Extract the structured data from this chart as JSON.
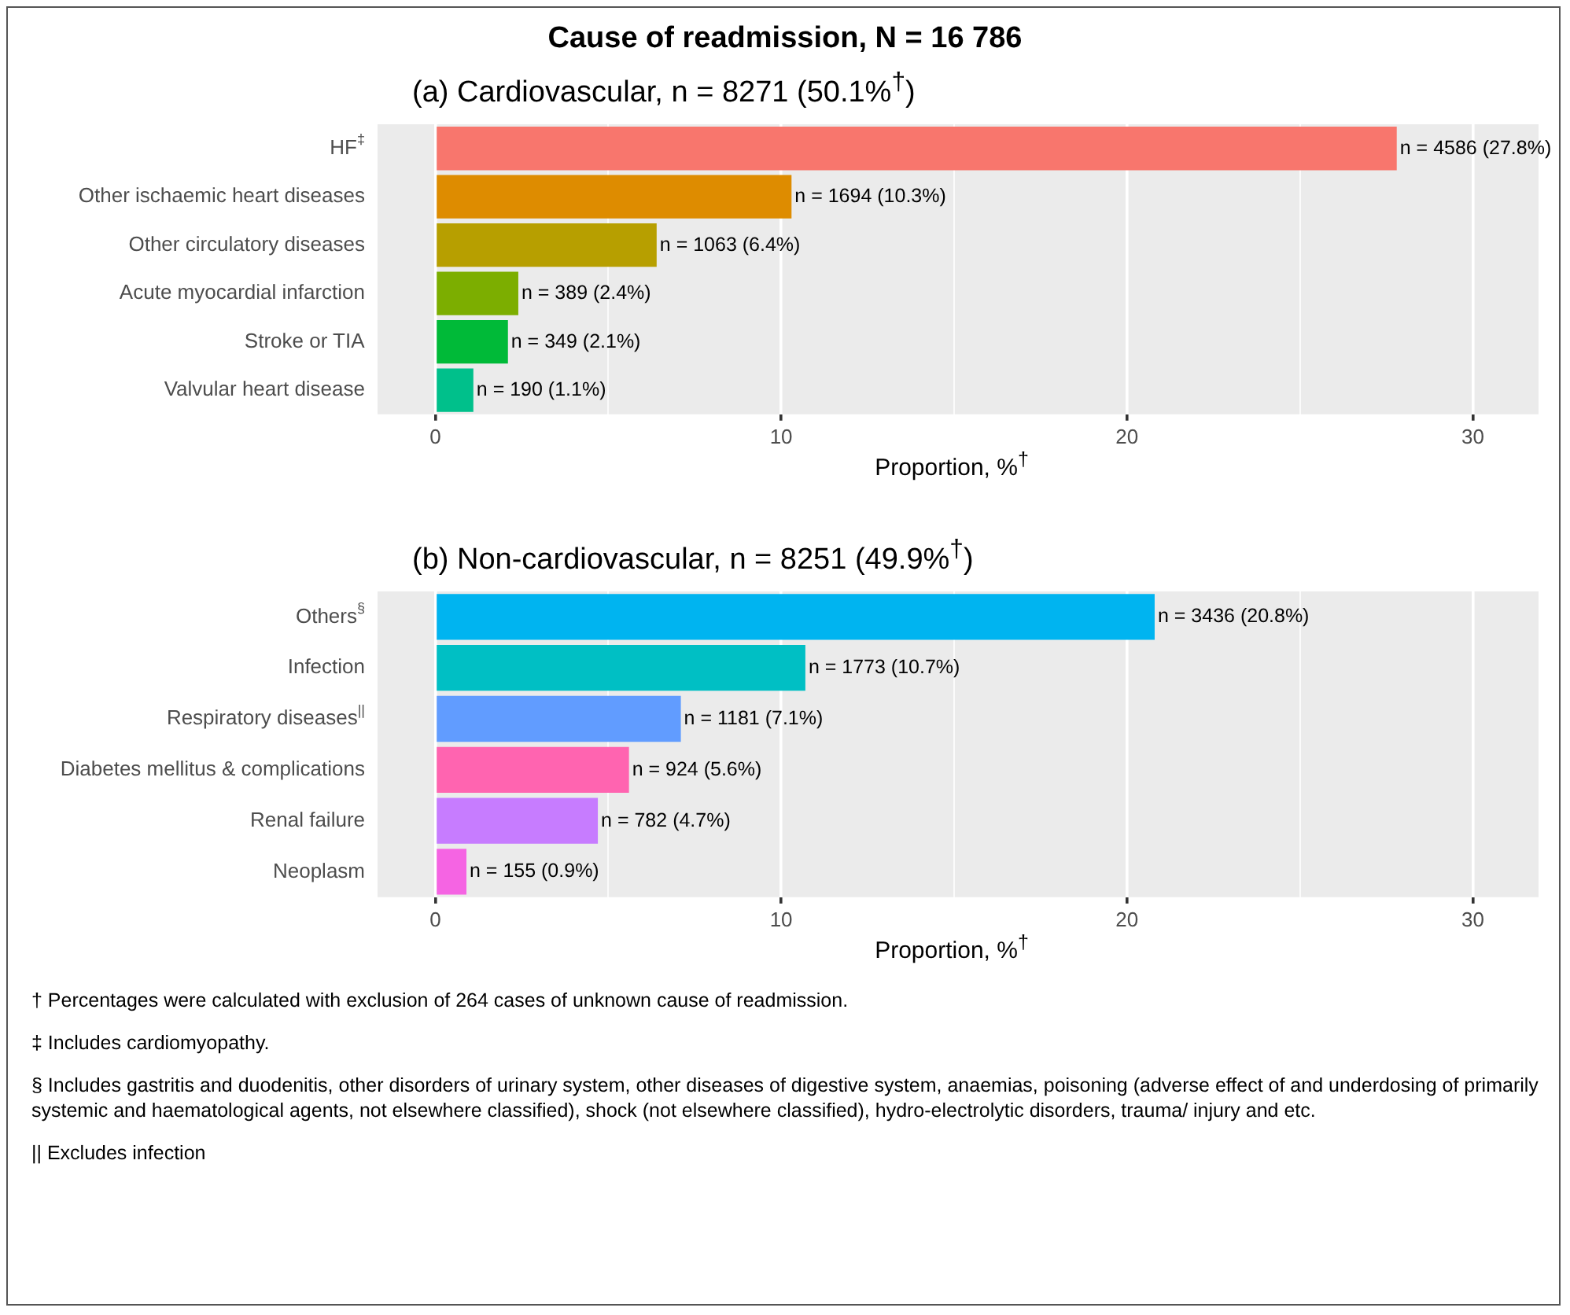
{
  "chart_data": [
    {
      "type": "bar",
      "orientation": "horizontal",
      "title": "Cause of readmission, N = 16 786",
      "subtitle": "(a) Cardiovascular, n = 8271 (50.1%$^{†}$)",
      "xlabel": "Proportion, %$^{†}$",
      "categories": [
        "HF$^{‡}$",
        "Other ischaemic heart diseases",
        "Other circulatory diseases",
        "Acute myocardial infarction",
        "Stroke or TIA",
        "Valvular heart disease"
      ],
      "values": [
        27.8,
        10.3,
        6.4,
        2.4,
        2.1,
        1.1
      ],
      "colors": [
        "#f8766d",
        "#de8c00",
        "#b79f00",
        "#7cae00",
        "#00ba38",
        "#00c08b"
      ],
      "value_labels": [
        "n = 4586 (27.8%)",
        "n = 1694 (10.3%)",
        "n = 1063 (6.4%)",
        "n = 389 (2.4%)",
        "n = 349 (2.1%)",
        "n = 190 (1.1%)"
      ],
      "xlim": [
        -1.67,
        31.9
      ],
      "xticks": [
        0,
        {
          "value": 5,
          "label": null
        },
        10,
        {
          "value": 15,
          "label": null
        },
        20,
        {
          "value": 25,
          "label": null
        },
        30
      ],
      "grid": true
    },
    {
      "type": "bar",
      "orientation": "horizontal",
      "title": "(b) Non-cardiovascular, n = 8251 (49.9%$^{†}$)",
      "xlabel": "Proportion, %$^{†}$",
      "categories": [
        "Others$^{§}$",
        "Infection",
        "Respiratory diseases$^{||}$",
        "Diabetes mellitus & complications",
        "Renal failure",
        "Neoplasm"
      ],
      "values": [
        20.8,
        10.7,
        7.1,
        5.6,
        4.7,
        0.9
      ],
      "colors": [
        "#00b4f0",
        "#00bfc4",
        "#619cff",
        "#ff64b0",
        "#c77cff",
        "#f564e3"
      ],
      "value_labels": [
        "n = 3436 (20.8%)",
        "n = 1773 (10.7%)",
        "n = 1181 (7.1%)",
        "n = 924 (5.6%)",
        "n = 782 (4.7%)",
        "n = 155 (0.9%)"
      ],
      "xlim": [
        -1.67,
        31.9
      ],
      "xticks": [
        0,
        {
          "value": 5,
          "label": null
        },
        10,
        {
          "value": 15,
          "label": null
        },
        20,
        {
          "value": 25,
          "label": null
        },
        30
      ],
      "grid": true,
      "annotations": [
        "† Percentages were calculated with exclusion of 264 cases of unknown cause of readmission.",
        "‡ Includes cardiomyopathy.",
        "§ Includes gastritis and duodenitis, other disorders of urinary system, other diseases of digestive system, anaemias, poisoning (adverse effect of and underdosing of primarily systemic and haematological agents, not elsewhere classified), shock (not elsewhere classified), hydro-electrolytic disorders, trauma/ injury and etc.",
        "|| Excludes infection"
      ]
    }
  ]
}
